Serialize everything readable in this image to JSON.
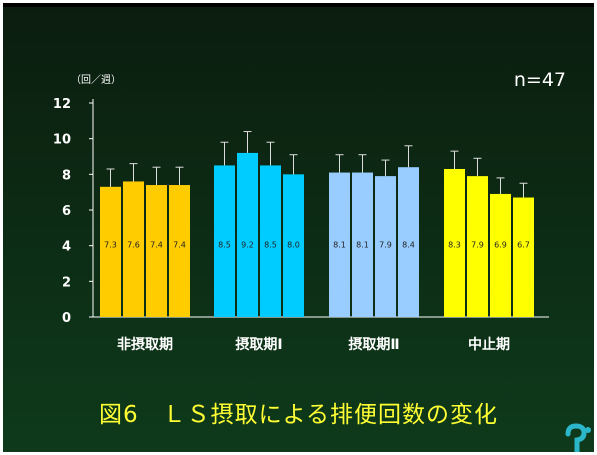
{
  "slide": {
    "sample_size": "n=47",
    "caption": "図6　ＬＳ摂取による排便回数の変化"
  },
  "chart_data": {
    "type": "bar",
    "title": "",
    "ylabel": "（回／週）",
    "ylim": [
      0,
      12
    ],
    "yticks": [
      0,
      2,
      4,
      6,
      8,
      10,
      12
    ],
    "categories": [
      "非摂取期",
      "摂取期Ⅰ",
      "摂取期Ⅱ",
      "中止期"
    ],
    "groups": [
      {
        "category": "非摂取期",
        "color": "#ffcc00",
        "values": [
          7.3,
          7.6,
          7.4,
          7.4
        ],
        "errors": [
          1.0,
          1.0,
          1.0,
          1.0
        ]
      },
      {
        "category": "摂取期Ⅰ",
        "color": "#00ccff",
        "values": [
          8.5,
          9.2,
          8.5,
          8.0
        ],
        "errors": [
          1.3,
          1.2,
          1.3,
          1.1
        ]
      },
      {
        "category": "摂取期Ⅱ",
        "color": "#99ccff",
        "values": [
          8.1,
          8.1,
          7.9,
          8.4
        ],
        "errors": [
          1.0,
          1.0,
          0.9,
          1.2
        ]
      },
      {
        "category": "中止期",
        "color": "#ffff00",
        "values": [
          8.3,
          7.9,
          6.9,
          6.7
        ],
        "errors": [
          1.0,
          1.0,
          0.9,
          0.8
        ]
      }
    ]
  }
}
